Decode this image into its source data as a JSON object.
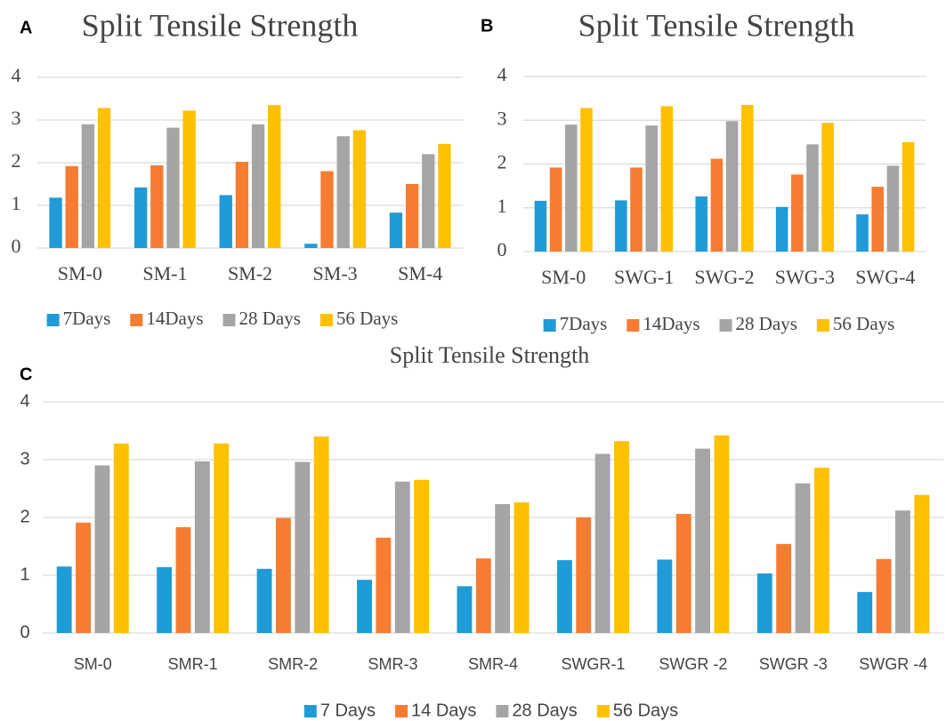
{
  "chart_data": [
    {
      "type": "bar",
      "panel": "A",
      "title": "Split Tensile Strength",
      "categories": [
        "SM-0",
        "SM-1",
        "SM-2",
        "SM-3",
        "SM-4"
      ],
      "series": [
        {
          "name": "7Days",
          "color": "#1f9bd7",
          "values": [
            1.18,
            1.42,
            1.24,
            0.1,
            0.83
          ]
        },
        {
          "name": "14Days",
          "color": "#f57c30",
          "values": [
            1.92,
            1.94,
            2.02,
            1.8,
            1.5
          ]
        },
        {
          "name": "28 Days",
          "color": "#a5a5a5",
          "values": [
            2.9,
            2.82,
            2.9,
            2.62,
            2.2
          ]
        },
        {
          "name": "56 Days",
          "color": "#ffc000",
          "values": [
            3.28,
            3.22,
            3.35,
            2.76,
            2.44
          ]
        }
      ],
      "ylim": [
        0,
        4
      ],
      "yticks": [
        0,
        1,
        2,
        3,
        4
      ],
      "grid": true,
      "legend": "bottom"
    },
    {
      "type": "bar",
      "panel": "B",
      "title": "Split Tensile Strength",
      "categories": [
        "SM-0",
        "SWG-1",
        "SWG-2",
        "SWG-3",
        "SWG-4"
      ],
      "series": [
        {
          "name": "7Days",
          "color": "#1f9bd7",
          "values": [
            1.16,
            1.17,
            1.26,
            1.02,
            0.85
          ]
        },
        {
          "name": "14Days",
          "color": "#f57c30",
          "values": [
            1.92,
            1.92,
            2.12,
            1.76,
            1.48
          ]
        },
        {
          "name": "28 Days",
          "color": "#a5a5a5",
          "values": [
            2.9,
            2.88,
            2.98,
            2.45,
            1.96
          ]
        },
        {
          "name": "56 Days",
          "color": "#ffc000",
          "values": [
            3.28,
            3.32,
            3.35,
            2.94,
            2.5
          ]
        }
      ],
      "ylim": [
        0,
        4
      ],
      "yticks": [
        0,
        1,
        2,
        3,
        4
      ],
      "grid": true,
      "legend": "bottom"
    },
    {
      "type": "bar",
      "panel": "C",
      "title": "Split Tensile Strength",
      "categories": [
        "SM-0",
        "SMR-1",
        "SMR-2",
        "SMR-3",
        "SMR-4",
        "SWGR-1",
        "SWGR -2",
        "SWGR -3",
        "SWGR -4"
      ],
      "series": [
        {
          "name": "7 Days",
          "color": "#1f9bd7",
          "values": [
            1.15,
            1.14,
            1.11,
            0.92,
            0.81,
            1.26,
            1.27,
            1.03,
            0.71
          ]
        },
        {
          "name": "14 Days",
          "color": "#f57c30",
          "values": [
            1.91,
            1.83,
            1.99,
            1.65,
            1.29,
            2.0,
            2.06,
            1.54,
            1.28
          ]
        },
        {
          "name": "28 Days",
          "color": "#a5a5a5",
          "values": [
            2.9,
            2.97,
            2.96,
            2.62,
            2.23,
            3.1,
            3.19,
            2.59,
            2.12
          ]
        },
        {
          "name": "56 Days",
          "color": "#ffc000",
          "values": [
            3.28,
            3.28,
            3.4,
            2.65,
            2.26,
            3.32,
            3.42,
            2.86,
            2.39
          ]
        }
      ],
      "ylim": [
        0,
        4
      ],
      "yticks": [
        0,
        1,
        2,
        3,
        4
      ],
      "grid": true,
      "legend": "bottom"
    }
  ]
}
